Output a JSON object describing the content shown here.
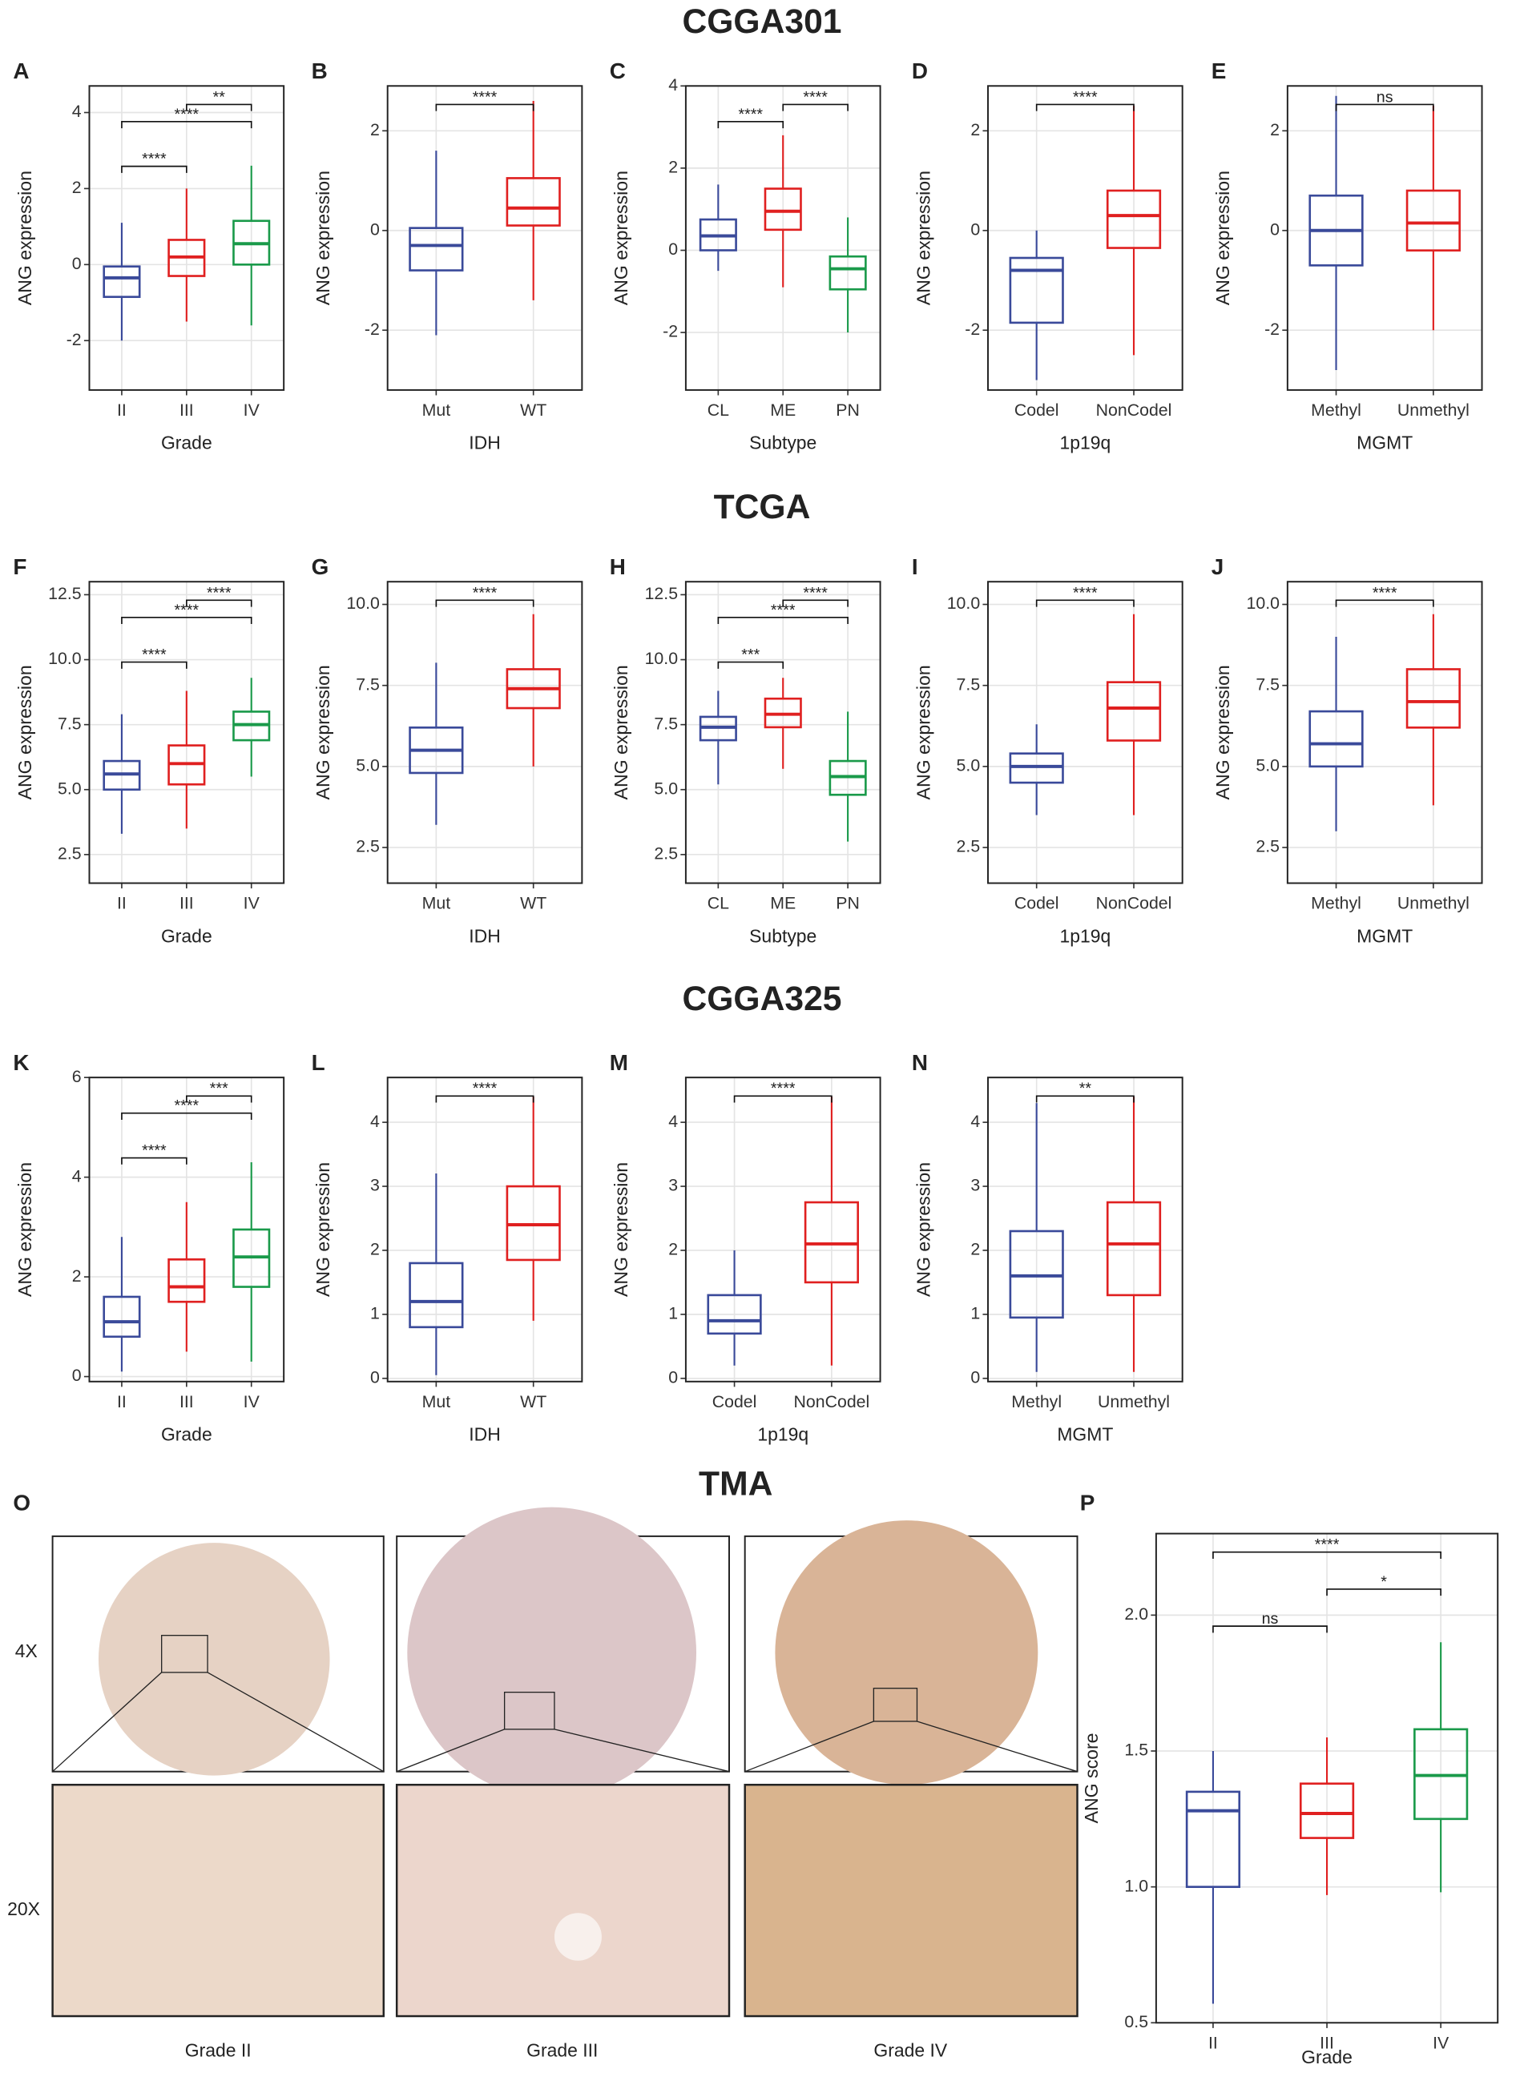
{
  "sections": [
    "CGGA301",
    "TCGA",
    "CGGA325",
    "TMA"
  ],
  "tma": {
    "panel": "O",
    "rows": [
      "4X",
      "20X"
    ],
    "columns": [
      "Grade II",
      "Grade III",
      "Grade IV"
    ]
  },
  "chart_data": [
    {
      "type": "box",
      "panel": "A",
      "ylabel": "ANG expression",
      "xlabel": "Grade",
      "ylim": [
        -3.3,
        4.7
      ],
      "yticks": [
        -2,
        0,
        2,
        4
      ],
      "grid": true,
      "groups": [
        {
          "name": "II",
          "color": "#3a4a9a",
          "low": -2.0,
          "q1": -0.85,
          "median": -0.35,
          "q3": -0.05,
          "high": 1.1
        },
        {
          "name": "III",
          "color": "#e02020",
          "low": -1.5,
          "q1": -0.3,
          "median": 0.2,
          "q3": 0.65,
          "high": 2.0
        },
        {
          "name": "IV",
          "color": "#1a9a4a",
          "low": -1.6,
          "q1": 0.0,
          "median": 0.55,
          "q3": 1.15,
          "high": 2.6
        }
      ],
      "brackets": [
        {
          "from": "II",
          "to": "III",
          "label": "****"
        },
        {
          "from": "II",
          "to": "IV",
          "label": "****"
        },
        {
          "from": "III",
          "to": "IV",
          "label": "**"
        }
      ]
    },
    {
      "type": "box",
      "panel": "B",
      "ylabel": "ANG expression",
      "xlabel": "IDH",
      "ylim": [
        -3.2,
        2.9
      ],
      "yticks": [
        -2,
        0,
        2
      ],
      "grid": true,
      "groups": [
        {
          "name": "Mut",
          "color": "#3a4a9a",
          "low": -2.1,
          "q1": -0.8,
          "median": -0.3,
          "q3": 0.05,
          "high": 1.6
        },
        {
          "name": "WT",
          "color": "#e02020",
          "low": -1.4,
          "q1": 0.1,
          "median": 0.45,
          "q3": 1.05,
          "high": 2.6
        }
      ],
      "brackets": [
        {
          "from": "Mut",
          "to": "WT",
          "label": "****"
        }
      ]
    },
    {
      "type": "box",
      "panel": "C",
      "ylabel": "ANG expression",
      "xlabel": "Subtype",
      "ylim": [
        -3.4,
        4.0
      ],
      "yticks": [
        -2,
        0,
        2,
        4
      ],
      "grid": true,
      "groups": [
        {
          "name": "CL",
          "color": "#3a4a9a",
          "low": -0.5,
          "q1": 0.0,
          "median": 0.35,
          "q3": 0.75,
          "high": 1.6
        },
        {
          "name": "ME",
          "color": "#e02020",
          "low": -0.9,
          "q1": 0.5,
          "median": 0.95,
          "q3": 1.5,
          "high": 2.8
        },
        {
          "name": "PN",
          "color": "#1a9a4a",
          "low": -2.0,
          "q1": -0.95,
          "median": -0.45,
          "q3": -0.15,
          "high": 0.8
        }
      ],
      "brackets": [
        {
          "from": "CL",
          "to": "ME",
          "label": "****"
        },
        {
          "from": "ME",
          "to": "PN",
          "label": "****"
        }
      ]
    },
    {
      "type": "box",
      "panel": "D",
      "ylabel": "ANG expression",
      "xlabel": "1p19q",
      "ylim": [
        -3.2,
        2.9
      ],
      "yticks": [
        -2,
        0,
        2
      ],
      "grid": true,
      "groups": [
        {
          "name": "Codel",
          "color": "#3a4a9a",
          "low": -3.0,
          "q1": -1.85,
          "median": -0.8,
          "q3": -0.55,
          "high": 0.0
        },
        {
          "name": "NonCodel",
          "color": "#e02020",
          "low": -2.5,
          "q1": -0.35,
          "median": 0.3,
          "q3": 0.8,
          "high": 2.5
        }
      ],
      "brackets": [
        {
          "from": "Codel",
          "to": "NonCodel",
          "label": "****"
        }
      ]
    },
    {
      "type": "box",
      "panel": "E",
      "ylabel": "ANG expression",
      "xlabel": "MGMT",
      "ylim": [
        -3.2,
        2.9
      ],
      "yticks": [
        -2,
        0,
        2
      ],
      "grid": true,
      "groups": [
        {
          "name": "Methyl",
          "color": "#3a4a9a",
          "low": -2.8,
          "q1": -0.7,
          "median": 0.0,
          "q3": 0.7,
          "high": 2.7
        },
        {
          "name": "Unmethyl",
          "color": "#e02020",
          "low": -2.0,
          "q1": -0.4,
          "median": 0.15,
          "q3": 0.8,
          "high": 2.5
        }
      ],
      "brackets": [
        {
          "from": "Methyl",
          "to": "Unmethyl",
          "label": "ns"
        }
      ]
    },
    {
      "type": "box",
      "panel": "F",
      "ylabel": "ANG expression",
      "xlabel": "Grade",
      "ylim": [
        1.4,
        13.0
      ],
      "yticks": [
        {
          "value": 2.5,
          "label": "2.5"
        },
        {
          "value": 5,
          "label": "5.0"
        },
        {
          "value": 7.5,
          "label": "7.5"
        },
        {
          "value": 10,
          "label": "10.0"
        },
        {
          "value": 12.5,
          "label": "12.5"
        }
      ],
      "grid": true,
      "groups": [
        {
          "name": "II",
          "color": "#3a4a9a",
          "low": 3.3,
          "q1": 5.0,
          "median": 5.6,
          "q3": 6.1,
          "high": 7.9
        },
        {
          "name": "III",
          "color": "#e02020",
          "low": 3.5,
          "q1": 5.2,
          "median": 6.0,
          "q3": 6.7,
          "high": 8.8
        },
        {
          "name": "IV",
          "color": "#1a9a4a",
          "low": 5.5,
          "q1": 6.9,
          "median": 7.5,
          "q3": 8.0,
          "high": 9.3
        }
      ],
      "brackets": [
        {
          "from": "II",
          "to": "III",
          "label": "****"
        },
        {
          "from": "II",
          "to": "IV",
          "label": "****"
        },
        {
          "from": "III",
          "to": "IV",
          "label": "****"
        }
      ]
    },
    {
      "type": "box",
      "panel": "G",
      "ylabel": "ANG expression",
      "xlabel": "IDH",
      "ylim": [
        1.4,
        10.7
      ],
      "yticks": [
        {
          "value": 2.5,
          "label": "2.5"
        },
        {
          "value": 5,
          "label": "5.0"
        },
        {
          "value": 7.5,
          "label": "7.5"
        },
        {
          "value": 10,
          "label": "10.0"
        }
      ],
      "grid": true,
      "groups": [
        {
          "name": "Mut",
          "color": "#3a4a9a",
          "low": 3.2,
          "q1": 4.8,
          "median": 5.5,
          "q3": 6.2,
          "high": 8.2
        },
        {
          "name": "WT",
          "color": "#e02020",
          "low": 5.0,
          "q1": 6.8,
          "median": 7.4,
          "q3": 8.0,
          "high": 9.7
        }
      ],
      "brackets": [
        {
          "from": "Mut",
          "to": "WT",
          "label": "****"
        }
      ]
    },
    {
      "type": "box",
      "panel": "H",
      "ylabel": "ANG expression",
      "xlabel": "Subtype",
      "ylim": [
        1.4,
        13.0
      ],
      "yticks": [
        {
          "value": 2.5,
          "label": "2.5"
        },
        {
          "value": 5,
          "label": "5.0"
        },
        {
          "value": 7.5,
          "label": "7.5"
        },
        {
          "value": 10,
          "label": "10.0"
        },
        {
          "value": 12.5,
          "label": "12.5"
        }
      ],
      "grid": true,
      "groups": [
        {
          "name": "CL",
          "color": "#3a4a9a",
          "low": 5.2,
          "q1": 6.9,
          "median": 7.4,
          "q3": 7.8,
          "high": 8.8
        },
        {
          "name": "ME",
          "color": "#e02020",
          "low": 5.8,
          "q1": 7.4,
          "median": 7.9,
          "q3": 8.5,
          "high": 9.3
        },
        {
          "name": "PN",
          "color": "#1a9a4a",
          "low": 3.0,
          "q1": 4.8,
          "median": 5.5,
          "q3": 6.1,
          "high": 8.0
        }
      ],
      "brackets": [
        {
          "from": "CL",
          "to": "ME",
          "label": "***"
        },
        {
          "from": "CL",
          "to": "PN",
          "label": "****"
        },
        {
          "from": "ME",
          "to": "PN",
          "label": "****"
        }
      ]
    },
    {
      "type": "box",
      "panel": "I",
      "ylabel": "ANG expression",
      "xlabel": "1p19q",
      "ylim": [
        1.4,
        10.7
      ],
      "yticks": [
        {
          "value": 2.5,
          "label": "2.5"
        },
        {
          "value": 5,
          "label": "5.0"
        },
        {
          "value": 7.5,
          "label": "7.5"
        },
        {
          "value": 10,
          "label": "10.0"
        }
      ],
      "grid": true,
      "groups": [
        {
          "name": "Codel",
          "color": "#3a4a9a",
          "low": 3.5,
          "q1": 4.5,
          "median": 5.0,
          "q3": 5.4,
          "high": 6.3
        },
        {
          "name": "NonCodel",
          "color": "#e02020",
          "low": 3.5,
          "q1": 5.8,
          "median": 6.8,
          "q3": 7.6,
          "high": 9.7
        }
      ],
      "brackets": [
        {
          "from": "Codel",
          "to": "NonCodel",
          "label": "****"
        }
      ]
    },
    {
      "type": "box",
      "panel": "J",
      "ylabel": "ANG expression",
      "xlabel": "MGMT",
      "ylim": [
        1.4,
        10.7
      ],
      "yticks": [
        {
          "value": 2.5,
          "label": "2.5"
        },
        {
          "value": 5,
          "label": "5.0"
        },
        {
          "value": 7.5,
          "label": "7.5"
        },
        {
          "value": 10,
          "label": "10.0"
        }
      ],
      "grid": true,
      "groups": [
        {
          "name": "Methyl",
          "color": "#3a4a9a",
          "low": 3.0,
          "q1": 5.0,
          "median": 5.7,
          "q3": 6.7,
          "high": 9.0
        },
        {
          "name": "Unmethyl",
          "color": "#e02020",
          "low": 3.8,
          "q1": 6.2,
          "median": 7.0,
          "q3": 8.0,
          "high": 9.7
        }
      ],
      "brackets": [
        {
          "from": "Methyl",
          "to": "Unmethyl",
          "label": "****"
        }
      ]
    },
    {
      "type": "box",
      "panel": "K",
      "ylabel": "ANG expression",
      "xlabel": "Grade",
      "ylim": [
        -0.1,
        6.0
      ],
      "yticks": [
        0,
        2,
        4,
        6
      ],
      "grid": true,
      "groups": [
        {
          "name": "II",
          "color": "#3a4a9a",
          "low": 0.1,
          "q1": 0.8,
          "median": 1.1,
          "q3": 1.6,
          "high": 2.8
        },
        {
          "name": "III",
          "color": "#e02020",
          "low": 0.5,
          "q1": 1.5,
          "median": 1.8,
          "q3": 2.35,
          "high": 3.5
        },
        {
          "name": "IV",
          "color": "#1a9a4a",
          "low": 0.3,
          "q1": 1.8,
          "median": 2.4,
          "q3": 2.95,
          "high": 4.3
        }
      ],
      "brackets": [
        {
          "from": "II",
          "to": "III",
          "label": "****"
        },
        {
          "from": "II",
          "to": "IV",
          "label": "****"
        },
        {
          "from": "III",
          "to": "IV",
          "label": "***"
        }
      ]
    },
    {
      "type": "box",
      "panel": "L",
      "ylabel": "ANG expression",
      "xlabel": "IDH",
      "ylim": [
        -0.05,
        4.7
      ],
      "yticks": [
        0,
        1,
        2,
        3,
        4
      ],
      "grid": true,
      "groups": [
        {
          "name": "Mut",
          "color": "#3a4a9a",
          "low": 0.05,
          "q1": 0.8,
          "median": 1.2,
          "q3": 1.8,
          "high": 3.2
        },
        {
          "name": "WT",
          "color": "#e02020",
          "low": 0.9,
          "q1": 1.85,
          "median": 2.4,
          "q3": 3.0,
          "high": 4.4
        }
      ],
      "brackets": [
        {
          "from": "Mut",
          "to": "WT",
          "label": "****"
        }
      ]
    },
    {
      "type": "box",
      "panel": "M",
      "ylabel": "ANG expression",
      "xlabel": "1p19q",
      "ylim": [
        -0.05,
        4.7
      ],
      "yticks": [
        0,
        1,
        2,
        3,
        4
      ],
      "grid": true,
      "groups": [
        {
          "name": "Codel",
          "color": "#3a4a9a",
          "low": 0.2,
          "q1": 0.7,
          "median": 0.9,
          "q3": 1.3,
          "high": 2.0
        },
        {
          "name": "NonCodel",
          "color": "#e02020",
          "low": 0.2,
          "q1": 1.5,
          "median": 2.1,
          "q3": 2.75,
          "high": 4.4
        }
      ],
      "brackets": [
        {
          "from": "Codel",
          "to": "NonCodel",
          "label": "****"
        }
      ]
    },
    {
      "type": "box",
      "panel": "N",
      "ylabel": "ANG expression",
      "xlabel": "MGMT",
      "ylim": [
        -0.05,
        4.7
      ],
      "yticks": [
        0,
        1,
        2,
        3,
        4
      ],
      "grid": true,
      "groups": [
        {
          "name": "Methyl",
          "color": "#3a4a9a",
          "low": 0.1,
          "q1": 0.95,
          "median": 1.6,
          "q3": 2.3,
          "high": 4.3
        },
        {
          "name": "Unmethyl",
          "color": "#e02020",
          "low": 0.1,
          "q1": 1.3,
          "median": 2.1,
          "q3": 2.75,
          "high": 4.4
        }
      ],
      "brackets": [
        {
          "from": "Methyl",
          "to": "Unmethyl",
          "label": "**"
        }
      ]
    },
    {
      "type": "box",
      "panel": "P",
      "ylabel": "ANG score",
      "xlabel": "Grade",
      "ylim": [
        0.5,
        2.3
      ],
      "yticks": [
        0.5,
        {
          "value": 1,
          "label": "1.0"
        },
        1.5,
        {
          "value": 2,
          "label": "2.0"
        }
      ],
      "grid": true,
      "groups": [
        {
          "name": "II",
          "color": "#3a4a9a",
          "low": 0.57,
          "q1": 1.0,
          "median": 1.28,
          "q3": 1.35,
          "high": 1.5
        },
        {
          "name": "III",
          "color": "#e02020",
          "low": 0.97,
          "q1": 1.18,
          "median": 1.27,
          "q3": 1.38,
          "high": 1.55
        },
        {
          "name": "IV",
          "color": "#1a9a4a",
          "low": 0.98,
          "q1": 1.25,
          "median": 1.41,
          "q3": 1.58,
          "high": 1.9
        }
      ],
      "brackets": [
        {
          "from": "II",
          "to": "III",
          "label": "ns"
        },
        {
          "from": "III",
          "to": "IV",
          "label": "*"
        },
        {
          "from": "II",
          "to": "IV",
          "label": "****"
        }
      ]
    }
  ]
}
